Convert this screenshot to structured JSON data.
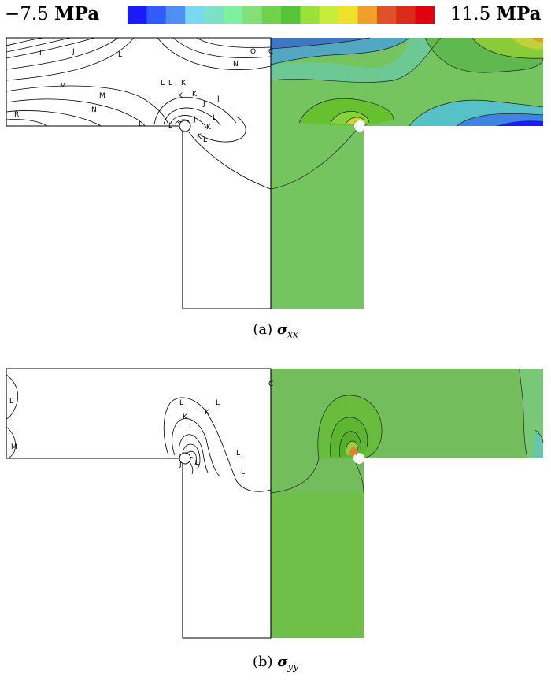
{
  "colorbar": {
    "min_value": "−7.5",
    "max_value": "11.5",
    "unit": "MPa",
    "colors": [
      "#1a1aff",
      "#2e5cff",
      "#4f8ff0",
      "#7ad8f0",
      "#7fe0c8",
      "#7ff0a0",
      "#86e07a",
      "#6fd24a",
      "#55c43a",
      "#9ae23a",
      "#c8ec3a",
      "#f0e22a",
      "#f0a02a",
      "#e0502a",
      "#dc2a1a",
      "#e00010"
    ]
  },
  "panels": [
    {
      "caption_prefix": "(a)",
      "symbol": "σ",
      "subscript": "xx",
      "contour_labels": [
        "I",
        "J",
        "L",
        "O",
        "C",
        "N",
        "M",
        "M",
        "N",
        "L",
        "L",
        "L",
        "K",
        "K",
        "K",
        "J",
        "J",
        "L",
        "K",
        "R",
        "L",
        "J",
        "K",
        "L"
      ]
    },
    {
      "caption_prefix": "(b)",
      "symbol": "σ",
      "subscript": "yy",
      "contour_labels": [
        "L",
        "L",
        "K",
        "L",
        "C",
        "L",
        "M",
        "J",
        "J",
        "L",
        "L",
        "L",
        "K"
      ]
    }
  ]
}
